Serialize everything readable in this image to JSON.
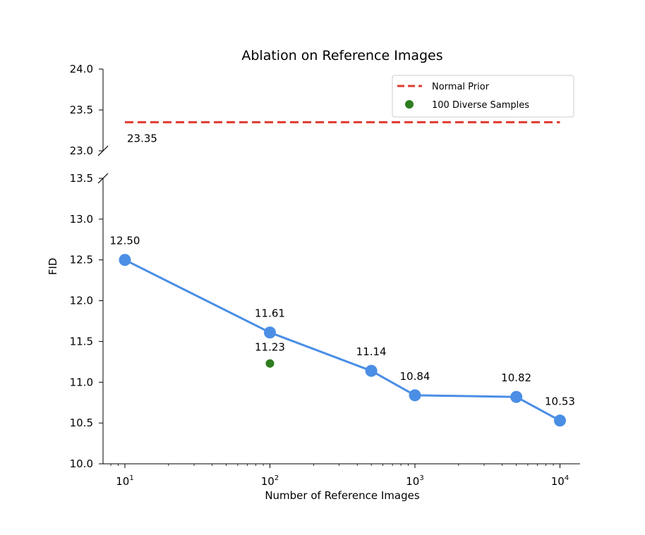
{
  "chart_data": {
    "type": "line",
    "title": "Ablation on Reference Images",
    "xlabel": "Number of Reference Images",
    "ylabel": "FID",
    "xscale": "log",
    "xlim": [
      7.5,
      13500
    ],
    "x_ticks": [
      {
        "value": 10,
        "base": "10",
        "exp": "1"
      },
      {
        "value": 100,
        "base": "10",
        "exp": "2"
      },
      {
        "value": 1000,
        "base": "10",
        "exp": "3"
      },
      {
        "value": 10000,
        "base": "10",
        "exp": "4"
      }
    ],
    "y_axis_lower": {
      "ylim": [
        10.0,
        13.5
      ],
      "ticks": [
        "10.0",
        "10.5",
        "11.0",
        "11.5",
        "12.0",
        "12.5",
        "13.0",
        "13.5"
      ]
    },
    "y_axis_upper": {
      "ylim": [
        23.0,
        24.0
      ],
      "ticks": [
        "23.0",
        "23.5",
        "24.0"
      ]
    },
    "broken_axis": true,
    "series": [
      {
        "name": "Reference Images",
        "color": "#4a8ee6",
        "x": [
          10,
          100,
          500,
          1000,
          5000,
          10000
        ],
        "y": [
          12.5,
          11.61,
          11.14,
          10.84,
          10.82,
          10.53
        ],
        "labels": [
          "12.50",
          "11.61",
          "11.14",
          "10.84",
          "10.82",
          "10.53"
        ]
      }
    ],
    "reference_line": {
      "name": "Normal Prior",
      "value": 23.35,
      "label": "23.35",
      "color": "#e03a2f",
      "style": "dashed"
    },
    "extra_point": {
      "name": "100 Diverse Samples",
      "x": 100,
      "y": 11.23,
      "label": "11.23",
      "color": "#2e7d1f"
    },
    "legend": {
      "location": "top-right",
      "entries": [
        {
          "label": "Normal Prior",
          "kind": "dashed-line",
          "color": "#e03a2f"
        },
        {
          "label": "100 Diverse Samples",
          "kind": "marker",
          "color": "#2e7d1f"
        }
      ]
    }
  }
}
